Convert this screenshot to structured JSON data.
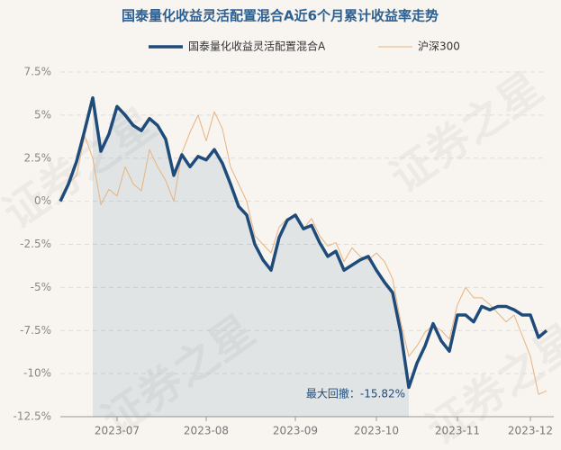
{
  "chart_data": {
    "type": "line",
    "title": "国泰量化收益灵活配置混合A近6个月累计收益率走势",
    "watermark": "证券之星",
    "annotation": "最大回撤：-15.82%",
    "categories": [
      null,
      null,
      null,
      null,
      null,
      null,
      null,
      "2023-07",
      null,
      null,
      null,
      null,
      null,
      null,
      null,
      null,
      null,
      null,
      "2023-08",
      null,
      null,
      null,
      null,
      null,
      null,
      null,
      null,
      null,
      null,
      "2023-09",
      null,
      null,
      null,
      null,
      null,
      null,
      null,
      null,
      null,
      "2023-10",
      null,
      null,
      null,
      null,
      null,
      null,
      null,
      null,
      null,
      "2023-11",
      null,
      null,
      null,
      null,
      null,
      null,
      null,
      null,
      "2023-12",
      null,
      null
    ],
    "series": [
      {
        "name": "国泰量化收益灵活配置混合A",
        "color": "#1f4b7a",
        "values": [
          0,
          1.0,
          2.3,
          4.1,
          6.0,
          2.9,
          3.9,
          5.5,
          5.0,
          4.4,
          4.1,
          4.8,
          4.4,
          3.6,
          1.5,
          2.7,
          2.0,
          2.6,
          2.4,
          3.0,
          2.2,
          1.0,
          -0.3,
          -0.8,
          -2.5,
          -3.4,
          -4.0,
          -2.1,
          -1.1,
          -0.8,
          -1.6,
          -1.4,
          -2.4,
          -3.2,
          -2.9,
          -4.0,
          -3.7,
          -3.4,
          -3.2,
          -4.0,
          -4.7,
          -5.3,
          -7.6,
          -10.8,
          -9.4,
          -8.4,
          -7.1,
          -8.1,
          -8.7,
          -6.6,
          -6.6,
          -7.0,
          -6.1,
          -6.3,
          -6.1,
          -6.1,
          -6.3,
          -6.6,
          -6.6,
          -7.9,
          -7.5
        ]
      },
      {
        "name": "沪深300",
        "color": "#e8b27f",
        "values": [
          0,
          1.0,
          1.5,
          3.8,
          2.5,
          -0.2,
          0.7,
          0.3,
          2.0,
          1.0,
          0.6,
          3.0,
          2.0,
          1.2,
          0,
          2.8,
          4.0,
          5.0,
          3.5,
          5.2,
          4.2,
          2.0,
          1.0,
          0,
          -2.0,
          -2.5,
          -3.0,
          -1.5,
          -1.0,
          -0.8,
          -1.6,
          -1.0,
          -2.0,
          -2.6,
          -2.4,
          -3.5,
          -2.7,
          -3.2,
          -3.4,
          -3.0,
          -3.5,
          -4.5,
          -7.0,
          -9.0,
          -8.4,
          -7.6,
          -7.2,
          -7.5,
          -8.0,
          -6.0,
          -5.0,
          -5.6,
          -5.6,
          -6.0,
          -6.5,
          -7.0,
          -6.6,
          -7.8,
          -9.0,
          -11.2,
          -11.0
        ]
      }
    ],
    "ylim": [
      -12.5,
      7.5
    ],
    "yticks": [
      {
        "value": -12.5,
        "label": "-12.5%"
      },
      {
        "value": -10,
        "label": "-10%"
      },
      {
        "value": -7.5,
        "label": "-7.5%"
      },
      {
        "value": -5,
        "label": "-5%"
      },
      {
        "value": -2.5,
        "label": "-2.5%"
      },
      {
        "value": 0,
        "label": "0%"
      },
      {
        "value": 2.5,
        "label": "2.5%"
      },
      {
        "value": 5,
        "label": "5%"
      },
      {
        "value": 7.5,
        "label": "7.5%"
      }
    ],
    "grid": true
  }
}
